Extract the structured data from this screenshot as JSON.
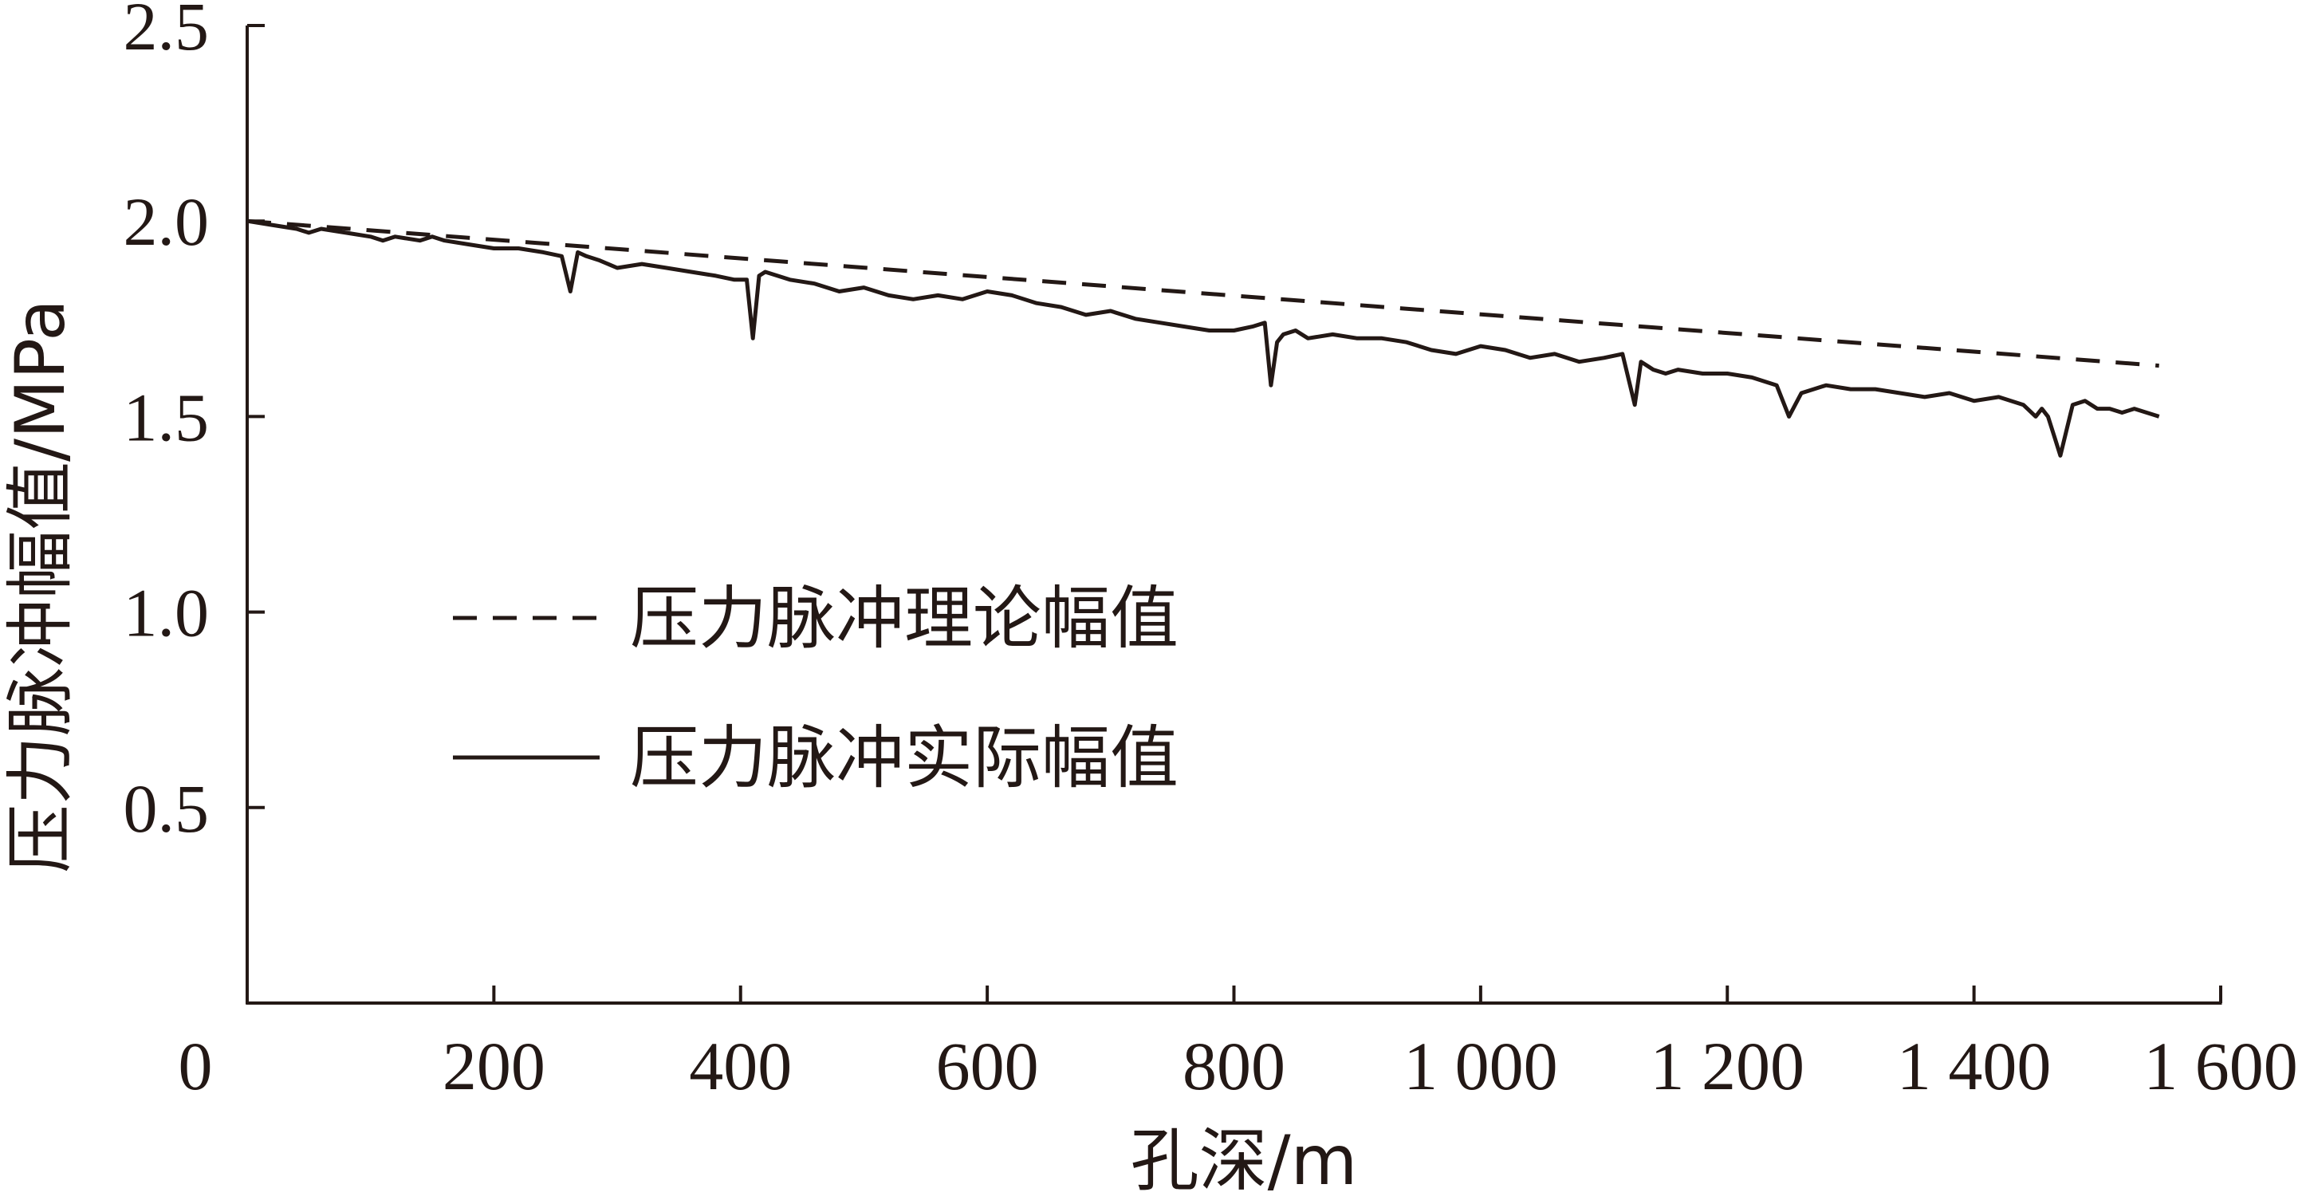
{
  "chart_data": {
    "type": "line",
    "title": "",
    "xlabel": "孔深/m",
    "ylabel": "压力脉冲幅值/MPa",
    "xlim": [
      0,
      1600
    ],
    "ylim": [
      0,
      2.5
    ],
    "x_ticks": [
      0,
      200,
      400,
      600,
      800,
      1000,
      1200,
      1400,
      1600
    ],
    "x_tick_labels": [
      "0",
      "200",
      "400",
      "600",
      "800",
      "1 000",
      "1 200",
      "1 400",
      "1 600"
    ],
    "y_ticks": [
      0.5,
      1.0,
      1.5,
      2.0,
      2.5
    ],
    "y_tick_labels": [
      "0.5",
      "1.0",
      "1.5",
      "2.0",
      "2.5"
    ],
    "grid": false,
    "legend_position": "center-left",
    "series": [
      {
        "name": "压力脉冲理论幅值",
        "style": "dashed",
        "color": "#231815",
        "x": [
          0,
          1550
        ],
        "y": [
          2.0,
          1.63
        ]
      },
      {
        "name": "压力脉冲实际幅值",
        "style": "solid",
        "color": "#231815",
        "x": [
          0,
          20,
          40,
          50,
          60,
          80,
          100,
          110,
          120,
          140,
          150,
          160,
          180,
          200,
          220,
          240,
          255,
          262,
          268,
          275,
          285,
          300,
          320,
          340,
          360,
          380,
          395,
          405,
          410,
          415,
          420,
          430,
          440,
          460,
          480,
          500,
          520,
          540,
          560,
          580,
          600,
          620,
          640,
          660,
          680,
          700,
          720,
          740,
          760,
          780,
          800,
          815,
          825,
          830,
          835,
          840,
          850,
          860,
          880,
          900,
          920,
          940,
          960,
          980,
          1000,
          1020,
          1040,
          1060,
          1080,
          1100,
          1115,
          1125,
          1130,
          1135,
          1140,
          1150,
          1160,
          1180,
          1200,
          1220,
          1240,
          1250,
          1260,
          1270,
          1280,
          1300,
          1320,
          1340,
          1360,
          1380,
          1400,
          1420,
          1440,
          1450,
          1455,
          1460,
          1465,
          1470,
          1480,
          1490,
          1500,
          1510,
          1520,
          1530,
          1540,
          1550
        ],
        "y": [
          2.0,
          1.99,
          1.98,
          1.97,
          1.98,
          1.97,
          1.96,
          1.95,
          1.96,
          1.95,
          1.96,
          1.95,
          1.94,
          1.93,
          1.93,
          1.92,
          1.91,
          1.82,
          1.92,
          1.91,
          1.9,
          1.88,
          1.89,
          1.88,
          1.87,
          1.86,
          1.85,
          1.85,
          1.7,
          1.86,
          1.87,
          1.86,
          1.85,
          1.84,
          1.82,
          1.83,
          1.81,
          1.8,
          1.81,
          1.8,
          1.82,
          1.81,
          1.79,
          1.78,
          1.76,
          1.77,
          1.75,
          1.74,
          1.73,
          1.72,
          1.72,
          1.73,
          1.74,
          1.58,
          1.69,
          1.71,
          1.72,
          1.7,
          1.71,
          1.7,
          1.7,
          1.69,
          1.67,
          1.66,
          1.68,
          1.67,
          1.65,
          1.66,
          1.64,
          1.65,
          1.66,
          1.53,
          1.64,
          1.63,
          1.62,
          1.61,
          1.62,
          1.61,
          1.61,
          1.6,
          1.58,
          1.5,
          1.56,
          1.57,
          1.58,
          1.57,
          1.57,
          1.56,
          1.55,
          1.56,
          1.54,
          1.55,
          1.53,
          1.5,
          1.52,
          1.5,
          1.45,
          1.4,
          1.53,
          1.54,
          1.52,
          1.52,
          1.51,
          1.52,
          1.51,
          1.5
        ]
      }
    ]
  }
}
